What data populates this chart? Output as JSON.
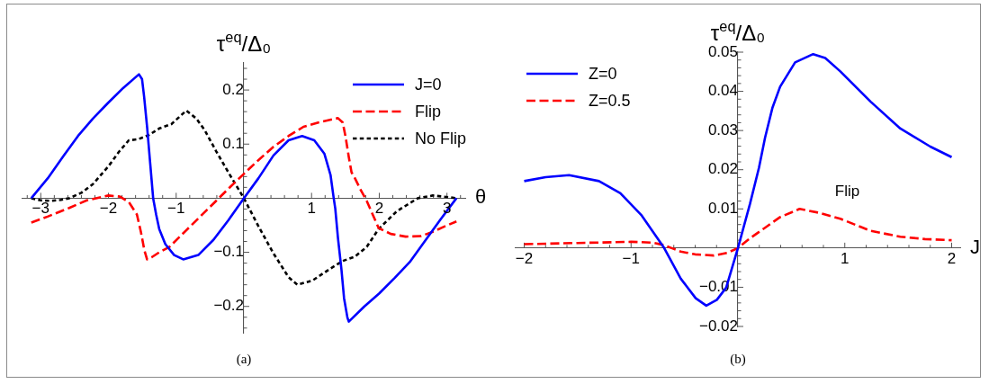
{
  "chart_data": [
    {
      "type": "line",
      "xlabel": "θ",
      "ylabel": "τ$^{eq}$/Δ₀",
      "annotations": [
        "(a)"
      ],
      "legend": "top right",
      "xlim": [
        -3.27,
        3.27
      ],
      "ylim": [
        -0.25,
        0.25
      ],
      "xticks": [
        {
          "value": -3.2,
          "label": null
        },
        {
          "value": -3,
          "label": "−3"
        },
        {
          "value": -2.8,
          "label": null
        },
        {
          "value": -2.6,
          "label": null
        },
        {
          "value": -2.4,
          "label": null
        },
        {
          "value": -2.2,
          "label": null
        },
        {
          "value": -2,
          "label": "−2"
        },
        {
          "value": -1.8,
          "label": null
        },
        {
          "value": -1.6,
          "label": null
        },
        {
          "value": -1.4,
          "label": null
        },
        {
          "value": -1.2,
          "label": null
        },
        {
          "value": -1,
          "label": "−1"
        },
        {
          "value": -0.8,
          "label": null
        },
        {
          "value": -0.6,
          "label": null
        },
        {
          "value": -0.4,
          "label": null
        },
        {
          "value": -0.2,
          "label": null
        },
        {
          "value": 0.2,
          "label": null
        },
        {
          "value": 0.4,
          "label": null
        },
        {
          "value": 0.6,
          "label": null
        },
        {
          "value": 0.8,
          "label": null
        },
        1,
        {
          "value": 1.2,
          "label": null
        },
        {
          "value": 1.4,
          "label": null
        },
        {
          "value": 1.6,
          "label": null
        },
        {
          "value": 1.8,
          "label": null
        },
        2,
        {
          "value": 2.2,
          "label": null
        },
        {
          "value": 2.4,
          "label": null
        },
        {
          "value": 2.6,
          "label": null
        },
        {
          "value": 2.8,
          "label": null
        },
        3,
        {
          "value": 3.2,
          "label": null
        }
      ],
      "yticks": [
        {
          "value": -0.24,
          "label": null
        },
        {
          "value": -0.22,
          "label": null
        },
        {
          "value": -0.2,
          "label": "−0.2"
        },
        {
          "value": -0.18,
          "label": null
        },
        {
          "value": -0.16,
          "label": null
        },
        {
          "value": -0.14,
          "label": null
        },
        {
          "value": -0.12,
          "label": null
        },
        {
          "value": -0.1,
          "label": "−0.1"
        },
        {
          "value": -0.08,
          "label": null
        },
        {
          "value": -0.06,
          "label": null
        },
        {
          "value": -0.04,
          "label": null
        },
        {
          "value": -0.02,
          "label": null
        },
        {
          "value": 0.02,
          "label": null
        },
        {
          "value": 0.04,
          "label": null
        },
        {
          "value": 0.06,
          "label": null
        },
        {
          "value": 0.08,
          "label": null
        },
        0.1,
        {
          "value": 0.12,
          "label": null
        },
        {
          "value": 0.14,
          "label": null
        },
        {
          "value": 0.16,
          "label": null
        },
        {
          "value": 0.18,
          "label": null
        },
        0.2,
        {
          "value": 0.22,
          "label": null
        },
        {
          "value": 0.24,
          "label": null
        }
      ],
      "series": [
        {
          "name": "J=0",
          "color": "#0000ff",
          "line_style": "solid",
          "x": [
            -3.14,
            -2.896,
            -2.67,
            -2.45,
            -2.23,
            -2.007,
            -1.78,
            -1.55,
            -1.504,
            -1.473,
            -1.429,
            -1.384,
            -1.34,
            -1.296,
            -1.25,
            -1.16,
            -1.03,
            -0.896,
            -0.673,
            -0.45,
            -0.23,
            0,
            0.216,
            0.437,
            0.66,
            0.86,
            1.04,
            1.19,
            1.28,
            1.327,
            1.35,
            1.39,
            1.44,
            1.48,
            1.53,
            1.55,
            1.78,
            2.0,
            2.23,
            2.45,
            2.67,
            2.9,
            3.14
          ],
          "values": [
            0,
            0.037,
            0.077,
            0.115,
            0.147,
            0.176,
            0.204,
            0.229,
            0.22,
            0.187,
            0.131,
            0.065,
            0,
            -0.03,
            -0.057,
            -0.085,
            -0.105,
            -0.113,
            -0.105,
            -0.077,
            -0.041,
            0,
            0.037,
            0.079,
            0.107,
            0.115,
            0.107,
            0.082,
            0.043,
            0,
            -0.019,
            -0.074,
            -0.13,
            -0.185,
            -0.221,
            -0.228,
            -0.2,
            -0.176,
            -0.147,
            -0.118,
            -0.08,
            -0.04,
            0
          ]
        },
        {
          "name": "Flip",
          "color": "#ff0000",
          "line_style": "dashed",
          "x": [
            -3.14,
            -2.9,
            -2.58,
            -2.32,
            -2.0,
            -1.83,
            -1.7,
            -1.58,
            -1.52,
            -1.47,
            -1.43,
            -1.36,
            -1.25,
            -1.1,
            -0.8,
            -0.5,
            -0.37,
            -0.2,
            0,
            0.22,
            0.437,
            0.66,
            0.88,
            1.1,
            1.39,
            1.46,
            1.5,
            1.55,
            1.59,
            1.64,
            1.727,
            1.815,
            1.99,
            2.17,
            2.39,
            2.62,
            2.79,
            2.97,
            3.14
          ],
          "values": [
            -0.045,
            -0.034,
            -0.018,
            -0.004,
            0.005,
            0.003,
            -0.007,
            -0.03,
            -0.063,
            -0.096,
            -0.113,
            -0.109,
            -0.1,
            -0.09,
            -0.053,
            -0.016,
            0,
            0.021,
            0.045,
            0.071,
            0.095,
            0.115,
            0.132,
            0.14,
            0.148,
            0.14,
            0.115,
            0.076,
            0.048,
            0.037,
            0.015,
            -0.005,
            -0.055,
            -0.066,
            -0.071,
            -0.07,
            -0.062,
            -0.052,
            -0.043
          ]
        },
        {
          "name": "No Flip",
          "color": "#000000",
          "line_style": "dotted",
          "x": [
            -3.14,
            -3.0,
            -2.85,
            -2.7,
            -2.58,
            -2.4,
            -2.23,
            -2.0,
            -1.85,
            -1.7,
            -1.56,
            -1.4,
            -1.25,
            -1.07,
            -0.85,
            -0.7,
            -0.58,
            -0.41,
            -0.23,
            -0.096,
            0,
            0.216,
            0.437,
            0.66,
            0.79,
            1.016,
            1.28,
            1.46,
            1.64,
            1.815,
            1.99,
            2.26,
            2.57,
            2.79,
            3.02,
            3.14
          ],
          "values": [
            0,
            -0.004,
            -0.005,
            -0.003,
            0,
            0.01,
            0.026,
            0.059,
            0.085,
            0.107,
            0.109,
            0.117,
            0.129,
            0.137,
            0.162,
            0.147,
            0.126,
            0.087,
            0.048,
            0.02,
            0,
            -0.052,
            -0.102,
            -0.146,
            -0.16,
            -0.152,
            -0.13,
            -0.116,
            -0.108,
            -0.09,
            -0.057,
            -0.024,
            0,
            0.005,
            0.002,
            0
          ]
        }
      ]
    },
    {
      "type": "line",
      "xlabel": "J",
      "ylabel": "τ$^{eq}$/Δ₀",
      "annotations": [
        "Flip",
        "(b)"
      ],
      "legend": "top left",
      "xlim": [
        -2.08,
        2.08
      ],
      "ylim": [
        -0.02,
        0.05
      ],
      "xticks": [
        {
          "value": -2,
          "label": "−2"
        },
        {
          "value": -1.8,
          "label": null
        },
        {
          "value": -1.6,
          "label": null
        },
        {
          "value": -1.4,
          "label": null
        },
        {
          "value": -1.2,
          "label": null
        },
        {
          "value": -1,
          "label": "−1"
        },
        {
          "value": -0.8,
          "label": null
        },
        {
          "value": -0.6,
          "label": null
        },
        {
          "value": -0.4,
          "label": null
        },
        {
          "value": -0.2,
          "label": null
        },
        {
          "value": 0.2,
          "label": null
        },
        {
          "value": 0.4,
          "label": null
        },
        {
          "value": 0.6,
          "label": null
        },
        {
          "value": 0.8,
          "label": null
        },
        1,
        {
          "value": 1.2,
          "label": null
        },
        {
          "value": 1.4,
          "label": null
        },
        {
          "value": 1.6,
          "label": null
        },
        {
          "value": 1.8,
          "label": null
        },
        2
      ],
      "yticks": [
        {
          "value": -0.02,
          "label": "−0.02"
        },
        {
          "value": -0.018,
          "label": null
        },
        {
          "value": -0.016,
          "label": null
        },
        {
          "value": -0.014,
          "label": null
        },
        {
          "value": -0.012,
          "label": null
        },
        {
          "value": -0.01,
          "label": "−0.01"
        },
        {
          "value": -0.008,
          "label": null
        },
        {
          "value": -0.006,
          "label": null
        },
        {
          "value": -0.004,
          "label": null
        },
        {
          "value": -0.002,
          "label": null
        },
        {
          "value": 0.002,
          "label": null
        },
        {
          "value": 0.004,
          "label": null
        },
        {
          "value": 0.006,
          "label": null
        },
        {
          "value": 0.008,
          "label": null
        },
        0.01,
        {
          "value": 0.012,
          "label": null
        },
        {
          "value": 0.014,
          "label": null
        },
        {
          "value": 0.016,
          "label": null
        },
        {
          "value": 0.018,
          "label": null
        },
        0.02,
        {
          "value": 0.022,
          "label": null
        },
        {
          "value": 0.024,
          "label": null
        },
        {
          "value": 0.026,
          "label": null
        },
        {
          "value": 0.028,
          "label": null
        },
        0.03,
        {
          "value": 0.032,
          "label": null
        },
        {
          "value": 0.034,
          "label": null
        },
        {
          "value": 0.036,
          "label": null
        },
        {
          "value": 0.038,
          "label": null
        },
        0.04,
        {
          "value": 0.042,
          "label": null
        },
        {
          "value": 0.044,
          "label": null
        },
        {
          "value": 0.046,
          "label": null
        },
        {
          "value": 0.048,
          "label": null
        },
        0.05
      ],
      "series": [
        {
          "name": "Z=0",
          "color": "#0000ff",
          "line_style": "solid",
          "x": [
            -2,
            -1.8,
            -1.58,
            -1.3,
            -1.1,
            -0.9,
            -0.69,
            -0.535,
            -0.395,
            -0.296,
            -0.197,
            -0.11,
            0,
            0.113,
            0.197,
            0.254,
            0.324,
            0.395,
            0.535,
            0.704,
            0.817,
            0.958,
            1.24,
            1.52,
            1.8,
            2
          ],
          "values": [
            0.0171,
            0.0181,
            0.0186,
            0.0171,
            0.014,
            0.0083,
            0,
            -0.0078,
            -0.0128,
            -0.0147,
            -0.0132,
            -0.0101,
            0,
            0.0113,
            0.0205,
            0.0282,
            0.0359,
            0.0412,
            0.0474,
            0.0495,
            0.0485,
            0.0451,
            0.0374,
            0.0305,
            0.0259,
            0.0232
          ]
        },
        {
          "name": "Z=0.5",
          "color": "#ff0000",
          "line_style": "dashed",
          "x": [
            -2,
            -1.5,
            -1.0,
            -0.8,
            -0.7,
            -0.62,
            -0.535,
            -0.4,
            -0.225,
            -0.1,
            0,
            0.113,
            0.254,
            0.395,
            0.577,
            0.76,
            0.958,
            1.24,
            1.52,
            1.75,
            2
          ],
          "values": [
            0.001,
            0.0013,
            0.0016,
            0.0014,
            0.0008,
            0,
            -0.0009,
            -0.0016,
            -0.0019,
            -0.0012,
            0,
            0.0025,
            0.0052,
            0.0079,
            0.01,
            0.009,
            0.0075,
            0.0044,
            0.0029,
            0.0023,
            0.002
          ]
        }
      ]
    }
  ]
}
